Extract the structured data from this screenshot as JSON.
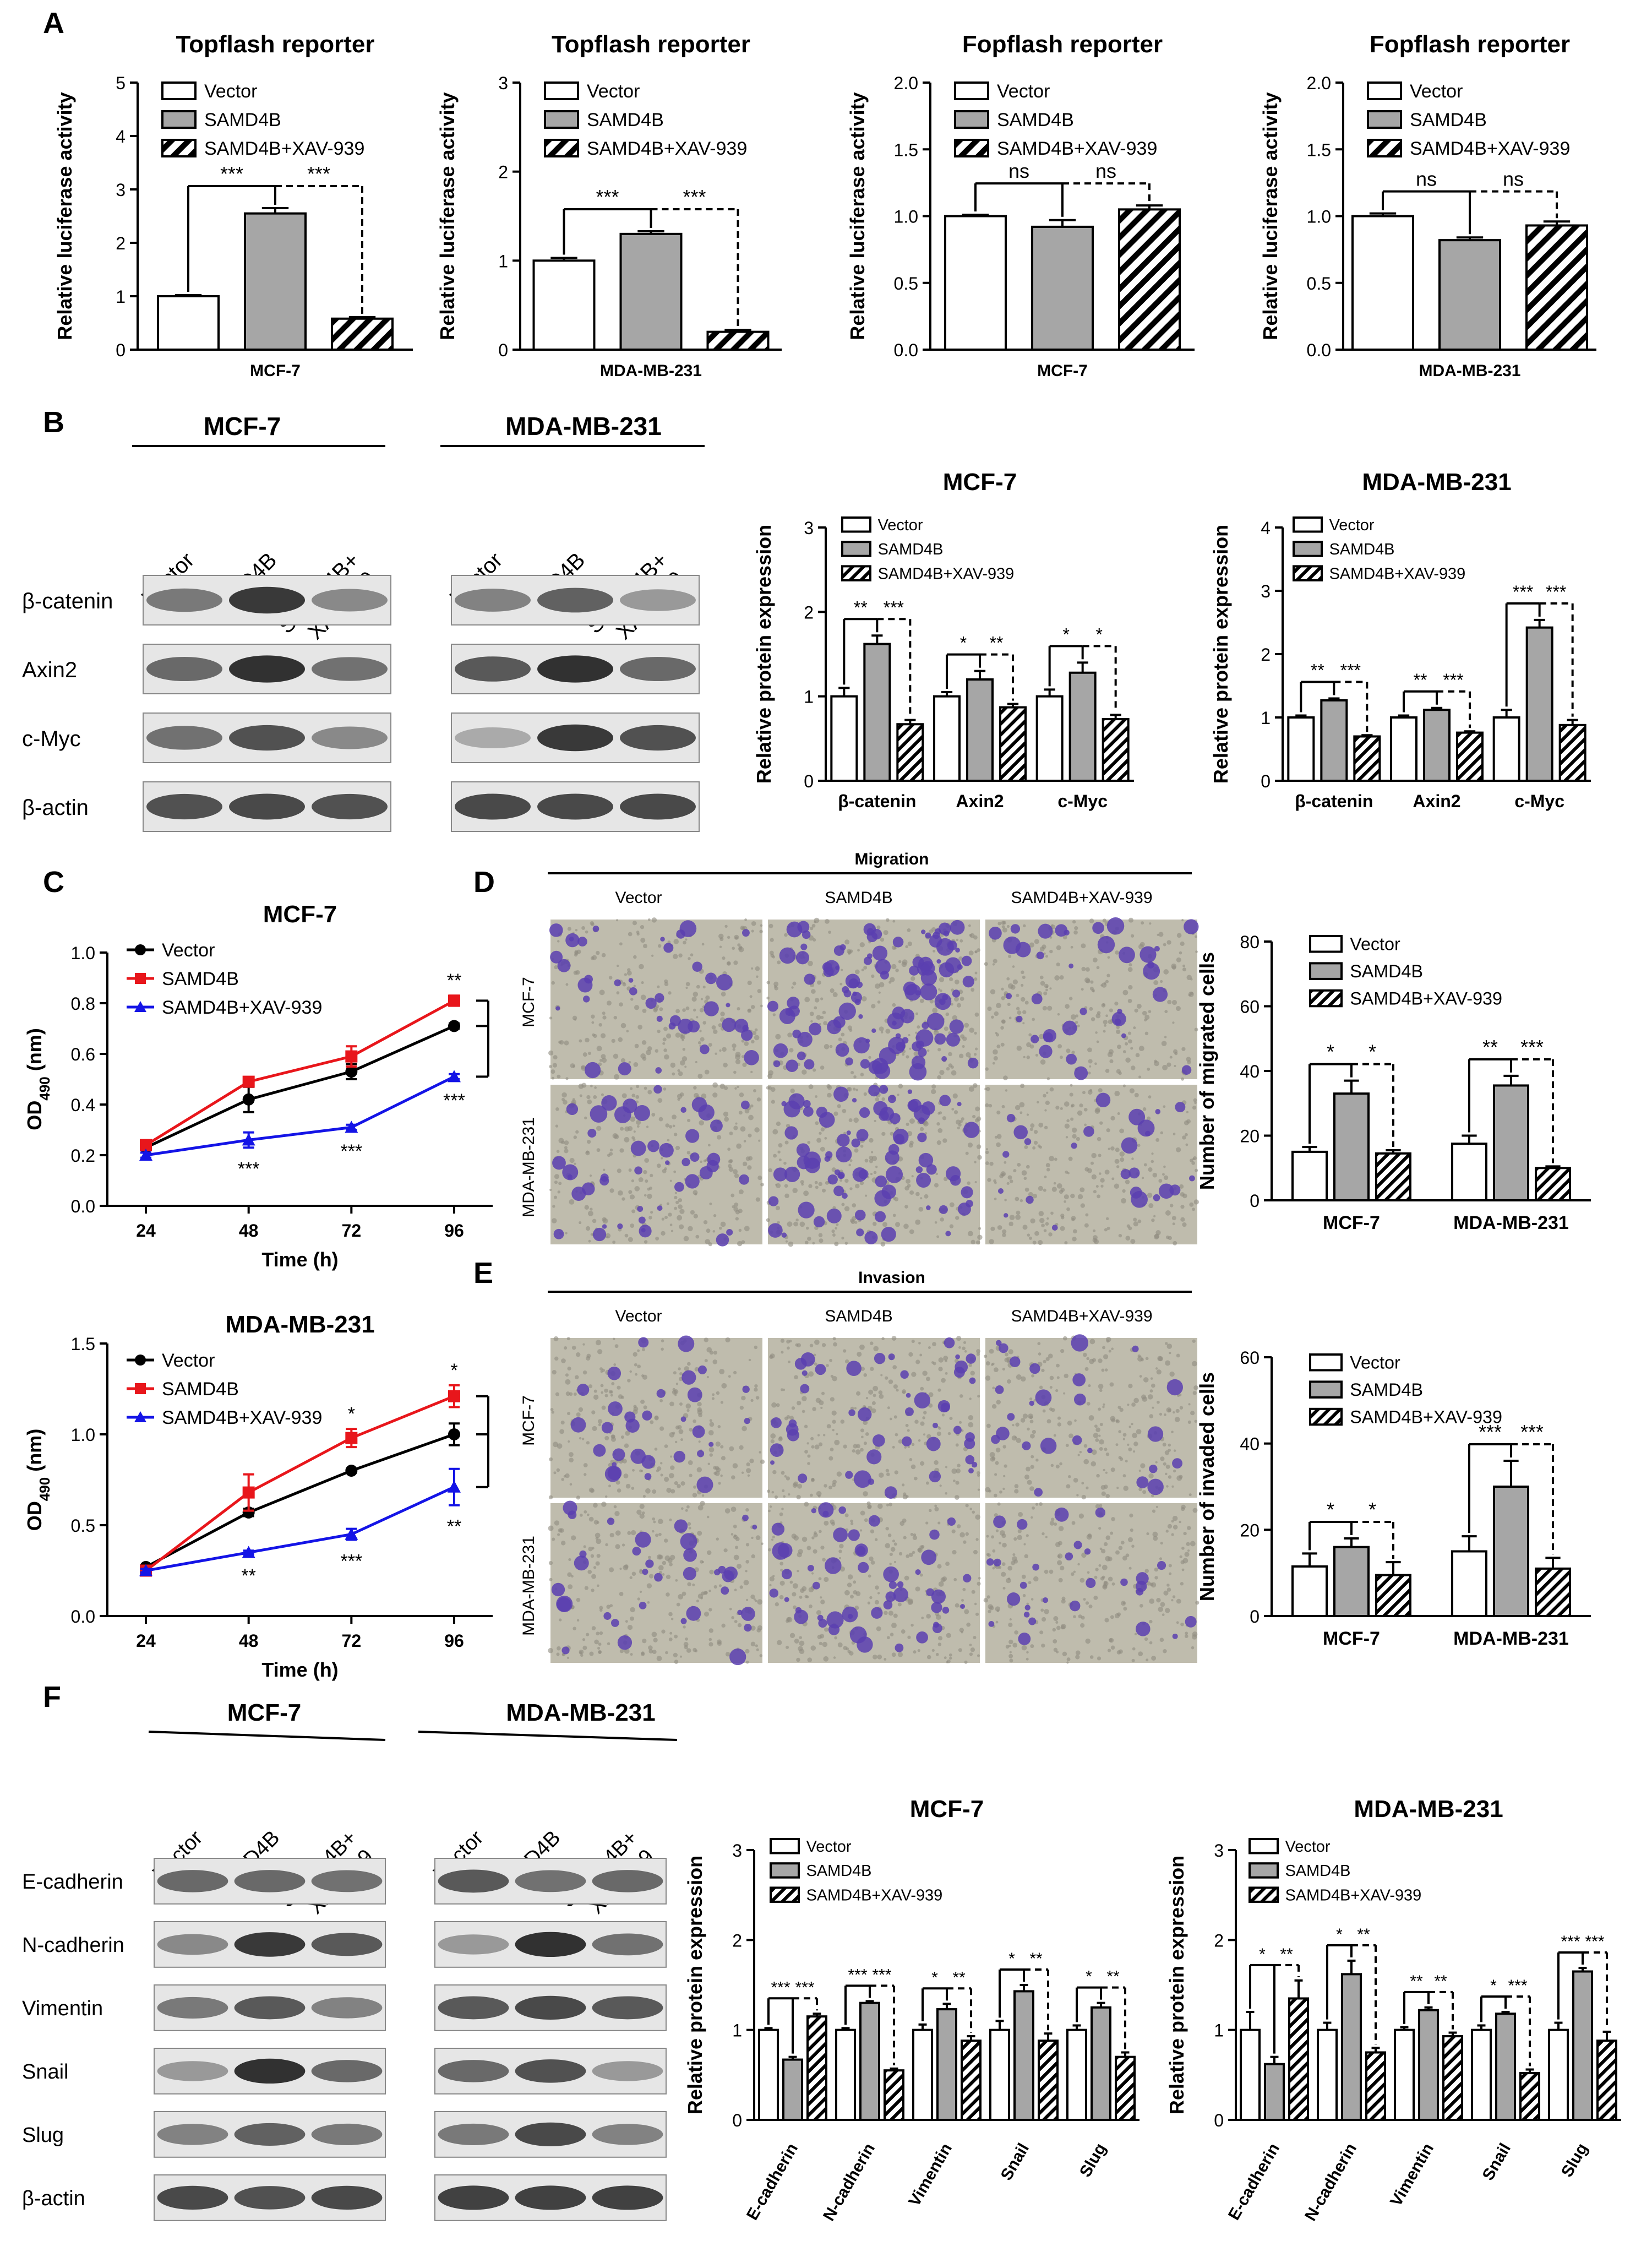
{
  "panel_letters": [
    "A",
    "B",
    "C",
    "D",
    "E",
    "F"
  ],
  "series_names": [
    "Vector",
    "SAMD4B",
    "SAMD4B+XAV-939"
  ],
  "colors": {
    "vector": "#ffffff",
    "samd4b": "#a6a6a6",
    "xav": "hatch",
    "line_vector": "#000000",
    "line_samd4b": "#e8161b",
    "line_xav": "#1414e6"
  },
  "blot_lanes": [
    "Vector",
    "SAMD4B",
    "SAMD4B+\nXAV-939"
  ],
  "blot_B": {
    "cells": [
      "MCF-7",
      "MDA-MB-231"
    ],
    "rows": [
      "β-catenin",
      "Axin2",
      "c-Myc",
      "β-actin"
    ]
  },
  "blot_F": {
    "cells": [
      "MCF-7",
      "MDA-MB-231"
    ],
    "rows": [
      "E-cadherin",
      "N-cadherin",
      "Vimentin",
      "Snail",
      "Slug",
      "β-actin"
    ]
  },
  "micro_D": {
    "header": "Migration",
    "columns": [
      "Vector",
      "SAMD4B",
      "SAMD4B+XAV-939"
    ],
    "rows": [
      "MCF-7",
      "MDA-MB-231"
    ]
  },
  "micro_E": {
    "header": "Invasion",
    "columns": [
      "Vector",
      "SAMD4B",
      "SAMD4B+XAV-939"
    ],
    "rows": [
      "MCF-7",
      "MDA-MB-231"
    ]
  },
  "chart_data": [
    {
      "id": "A1",
      "type": "bar",
      "title": "Topflash reporter",
      "ylabel": "Relative luciferase activity",
      "xlabel": "MCF-7",
      "ylim": [
        0,
        5
      ],
      "yticks": [
        "0",
        "1",
        "2",
        "3",
        "4",
        "5"
      ],
      "groups": [
        ""
      ],
      "series": [
        {
          "name": "Vector",
          "values": [
            1.0
          ],
          "err": [
            0.02
          ]
        },
        {
          "name": "SAMD4B",
          "values": [
            2.55
          ],
          "err": [
            0.1
          ]
        },
        {
          "name": "SAMD4B+XAV-939",
          "values": [
            0.58
          ],
          "err": [
            0.03
          ]
        }
      ],
      "sig": [
        [
          "***",
          "***"
        ]
      ]
    },
    {
      "id": "A2",
      "type": "bar",
      "title": "Topflash reporter",
      "ylabel": "Relative luciferase activity",
      "xlabel": "MDA-MB-231",
      "ylim": [
        0,
        3
      ],
      "yticks": [
        "0",
        "1",
        "2",
        "3"
      ],
      "groups": [
        ""
      ],
      "series": [
        {
          "name": "Vector",
          "values": [
            1.0
          ],
          "err": [
            0.03
          ]
        },
        {
          "name": "SAMD4B",
          "values": [
            1.3
          ],
          "err": [
            0.03
          ]
        },
        {
          "name": "SAMD4B+XAV-939",
          "values": [
            0.2
          ],
          "err": [
            0.02
          ]
        }
      ],
      "sig": [
        [
          "***",
          "***"
        ]
      ]
    },
    {
      "id": "A3",
      "type": "bar",
      "title": "Fopflash reporter",
      "ylabel": "Relative luciferase activity",
      "xlabel": "MCF-7",
      "ylim": [
        0,
        2
      ],
      "yticks": [
        "0.0",
        "0.5",
        "1.0",
        "1.5",
        "2.0"
      ],
      "groups": [
        ""
      ],
      "series": [
        {
          "name": "Vector",
          "values": [
            1.0
          ],
          "err": [
            0.01
          ]
        },
        {
          "name": "SAMD4B",
          "values": [
            0.92
          ],
          "err": [
            0.05
          ]
        },
        {
          "name": "SAMD4B+XAV-939",
          "values": [
            1.05
          ],
          "err": [
            0.03
          ]
        }
      ],
      "sig": [
        [
          "ns",
          "ns"
        ]
      ]
    },
    {
      "id": "A4",
      "type": "bar",
      "title": "Fopflash reporter",
      "ylabel": "Relative luciferase activity",
      "xlabel": "MDA-MB-231",
      "ylim": [
        0,
        2
      ],
      "yticks": [
        "0.0",
        "0.5",
        "1.0",
        "1.5",
        "2.0"
      ],
      "groups": [
        ""
      ],
      "series": [
        {
          "name": "Vector",
          "values": [
            1.0
          ],
          "err": [
            0.02
          ]
        },
        {
          "name": "SAMD4B",
          "values": [
            0.82
          ],
          "err": [
            0.02
          ]
        },
        {
          "name": "SAMD4B+XAV-939",
          "values": [
            0.93
          ],
          "err": [
            0.03
          ]
        }
      ],
      "sig": [
        [
          "ns",
          "ns"
        ]
      ]
    },
    {
      "id": "B1",
      "type": "bar",
      "title": "MCF-7",
      "ylabel": "Relative protein expression",
      "xlabel": "",
      "ylim": [
        0,
        3
      ],
      "yticks": [
        "0",
        "1",
        "2",
        "3"
      ],
      "groups": [
        "β-catenin",
        "Axin2",
        "c-Myc"
      ],
      "series": [
        {
          "name": "Vector",
          "values": [
            1.0,
            1.0,
            1.0
          ],
          "err": [
            0.1,
            0.05,
            0.08
          ]
        },
        {
          "name": "SAMD4B",
          "values": [
            1.62,
            1.2,
            1.28
          ],
          "err": [
            0.1,
            0.1,
            0.12
          ]
        },
        {
          "name": "SAMD4B+XAV-939",
          "values": [
            0.67,
            0.87,
            0.73
          ],
          "err": [
            0.05,
            0.04,
            0.05
          ]
        }
      ],
      "sig": [
        [
          "**",
          "***"
        ],
        [
          "*",
          "**"
        ],
        [
          "*",
          "*"
        ]
      ]
    },
    {
      "id": "B2",
      "type": "bar",
      "title": "MDA-MB-231",
      "ylabel": "Relative protein expression",
      "xlabel": "",
      "ylim": [
        0,
        4
      ],
      "yticks": [
        "0",
        "1",
        "2",
        "3",
        "4"
      ],
      "groups": [
        "β-catenin",
        "Axin2",
        "c-Myc"
      ],
      "series": [
        {
          "name": "Vector",
          "values": [
            1.0,
            1.0,
            1.0
          ],
          "err": [
            0.03,
            0.03,
            0.12
          ]
        },
        {
          "name": "SAMD4B",
          "values": [
            1.27,
            1.12,
            2.42
          ],
          "err": [
            0.03,
            0.03,
            0.12
          ]
        },
        {
          "name": "SAMD4B+XAV-939",
          "values": [
            0.7,
            0.76,
            0.88
          ],
          "err": [
            0.02,
            0.02,
            0.08
          ]
        }
      ],
      "sig": [
        [
          "**",
          "***"
        ],
        [
          "**",
          "***"
        ],
        [
          "***",
          "***"
        ]
      ]
    },
    {
      "id": "C1",
      "type": "line",
      "title": "MCF-7",
      "ylabel": "OD490 (nm)",
      "xlabel": "Time (h)",
      "x": [
        24,
        48,
        72,
        96
      ],
      "xticks": [
        "24",
        "48",
        "72",
        "96"
      ],
      "ylim": [
        0,
        1.0
      ],
      "yticks": [
        "0.0",
        "0.2",
        "0.4",
        "0.6",
        "0.8",
        "1.0"
      ],
      "series": [
        {
          "name": "Vector",
          "values": [
            0.23,
            0.42,
            0.53,
            0.71
          ],
          "err": [
            0.01,
            0.05,
            0.03,
            0.01
          ]
        },
        {
          "name": "SAMD4B",
          "values": [
            0.24,
            0.49,
            0.59,
            0.81
          ],
          "err": [
            0.01,
            0.01,
            0.04,
            0.02
          ]
        },
        {
          "name": "SAMD4B+XAV-939",
          "values": [
            0.2,
            0.26,
            0.31,
            0.51
          ],
          "err": [
            0.01,
            0.03,
            0.01,
            0.01
          ]
        }
      ],
      "annotations_top": [
        "",
        "",
        "",
        "**"
      ],
      "annotations_bottom": [
        "",
        "***",
        "***",
        "***"
      ]
    },
    {
      "id": "C2",
      "type": "line",
      "title": "MDA-MB-231",
      "ylabel": "OD490 (nm)",
      "xlabel": "Time (h)",
      "x": [
        24,
        48,
        72,
        96
      ],
      "xticks": [
        "24",
        "48",
        "72",
        "96"
      ],
      "ylim": [
        0,
        1.5
      ],
      "yticks": [
        "0.0",
        "0.5",
        "1.0",
        "1.5"
      ],
      "series": [
        {
          "name": "Vector",
          "values": [
            0.27,
            0.57,
            0.8,
            1.0
          ],
          "err": [
            0.01,
            0.02,
            0.01,
            0.06
          ]
        },
        {
          "name": "SAMD4B",
          "values": [
            0.25,
            0.68,
            0.98,
            1.21
          ],
          "err": [
            0.01,
            0.1,
            0.05,
            0.06
          ]
        },
        {
          "name": "SAMD4B+XAV-939",
          "values": [
            0.25,
            0.35,
            0.45,
            0.71
          ],
          "err": [
            0.01,
            0.01,
            0.03,
            0.1
          ]
        }
      ],
      "annotations_top": [
        "",
        "",
        "*",
        "*"
      ],
      "annotations_bottom": [
        "",
        "**",
        "***",
        "**"
      ]
    },
    {
      "id": "D",
      "type": "bar",
      "title": "",
      "ylabel": "Number of migrated cells",
      "xlabel": "",
      "ylim": [
        0,
        80
      ],
      "yticks": [
        "0",
        "20",
        "40",
        "60",
        "80"
      ],
      "groups": [
        "MCF-7",
        "MDA-MB-231"
      ],
      "series": [
        {
          "name": "Vector",
          "values": [
            15,
            17.5
          ],
          "err": [
            1.5,
            2.5
          ]
        },
        {
          "name": "SAMD4B",
          "values": [
            33,
            35.5
          ],
          "err": [
            4,
            3
          ]
        },
        {
          "name": "SAMD4B+XAV-939",
          "values": [
            14.5,
            10
          ],
          "err": [
            1,
            0.5
          ]
        }
      ],
      "sig": [
        [
          "*",
          "*"
        ],
        [
          "**",
          "***"
        ]
      ]
    },
    {
      "id": "E",
      "type": "bar",
      "title": "",
      "ylabel": "Number of invaded cells",
      "xlabel": "",
      "ylim": [
        0,
        60
      ],
      "yticks": [
        "0",
        "20",
        "40",
        "60"
      ],
      "groups": [
        "MCF-7",
        "MDA-MB-231"
      ],
      "series": [
        {
          "name": "Vector",
          "values": [
            11.5,
            15
          ],
          "err": [
            3,
            3.5
          ]
        },
        {
          "name": "SAMD4B",
          "values": [
            16,
            30
          ],
          "err": [
            2,
            6
          ]
        },
        {
          "name": "SAMD4B+XAV-939",
          "values": [
            9.5,
            11
          ],
          "err": [
            3,
            2.5
          ]
        }
      ],
      "sig": [
        [
          "*",
          "*"
        ],
        [
          "***",
          "***"
        ]
      ]
    },
    {
      "id": "F1",
      "type": "bar",
      "title": "MCF-7",
      "ylabel": "Relative protein expression",
      "xlabel": "",
      "ylim": [
        0,
        3
      ],
      "yticks": [
        "0",
        "1",
        "2",
        "3"
      ],
      "groups": [
        "E-cadherin",
        "N-cadherin",
        "Vimentin",
        "Snail",
        "Slug"
      ],
      "series": [
        {
          "name": "Vector",
          "values": [
            1.0,
            1.0,
            1.0,
            1.0,
            1.0
          ],
          "err": [
            0.02,
            0.02,
            0.06,
            0.1,
            0.05
          ]
        },
        {
          "name": "SAMD4B",
          "values": [
            0.67,
            1.3,
            1.23,
            1.43,
            1.25
          ],
          "err": [
            0.03,
            0.02,
            0.06,
            0.07,
            0.05
          ]
        },
        {
          "name": "SAMD4B+XAV-939",
          "values": [
            1.15,
            0.55,
            0.88,
            0.88,
            0.7
          ],
          "err": [
            0.03,
            0.02,
            0.05,
            0.08,
            0.05
          ]
        }
      ],
      "sig": [
        [
          "***",
          "***"
        ],
        [
          "***",
          "***"
        ],
        [
          "*",
          "**"
        ],
        [
          "*",
          "**"
        ],
        [
          "*",
          "**"
        ]
      ]
    },
    {
      "id": "F2",
      "type": "bar",
      "title": "MDA-MB-231",
      "ylabel": "Relative protein expression",
      "xlabel": "",
      "ylim": [
        0,
        3
      ],
      "yticks": [
        "0",
        "1",
        "2",
        "3"
      ],
      "groups": [
        "E-cadherin",
        "N-cadherin",
        "Vimentin",
        "Snail",
        "Slug"
      ],
      "series": [
        {
          "name": "Vector",
          "values": [
            1.0,
            1.0,
            1.0,
            1.0,
            1.0
          ],
          "err": [
            0.2,
            0.08,
            0.03,
            0.05,
            0.08
          ]
        },
        {
          "name": "SAMD4B",
          "values": [
            0.62,
            1.62,
            1.22,
            1.18,
            1.65
          ],
          "err": [
            0.08,
            0.15,
            0.03,
            0.02,
            0.04
          ]
        },
        {
          "name": "SAMD4B+XAV-939",
          "values": [
            1.35,
            0.75,
            0.93,
            0.52,
            0.88
          ],
          "err": [
            0.2,
            0.05,
            0.04,
            0.04,
            0.1
          ]
        }
      ],
      "sig": [
        [
          "*",
          "**"
        ],
        [
          "*",
          "**"
        ],
        [
          "**",
          "**"
        ],
        [
          "*",
          "***"
        ],
        [
          "***",
          "***"
        ]
      ]
    }
  ]
}
